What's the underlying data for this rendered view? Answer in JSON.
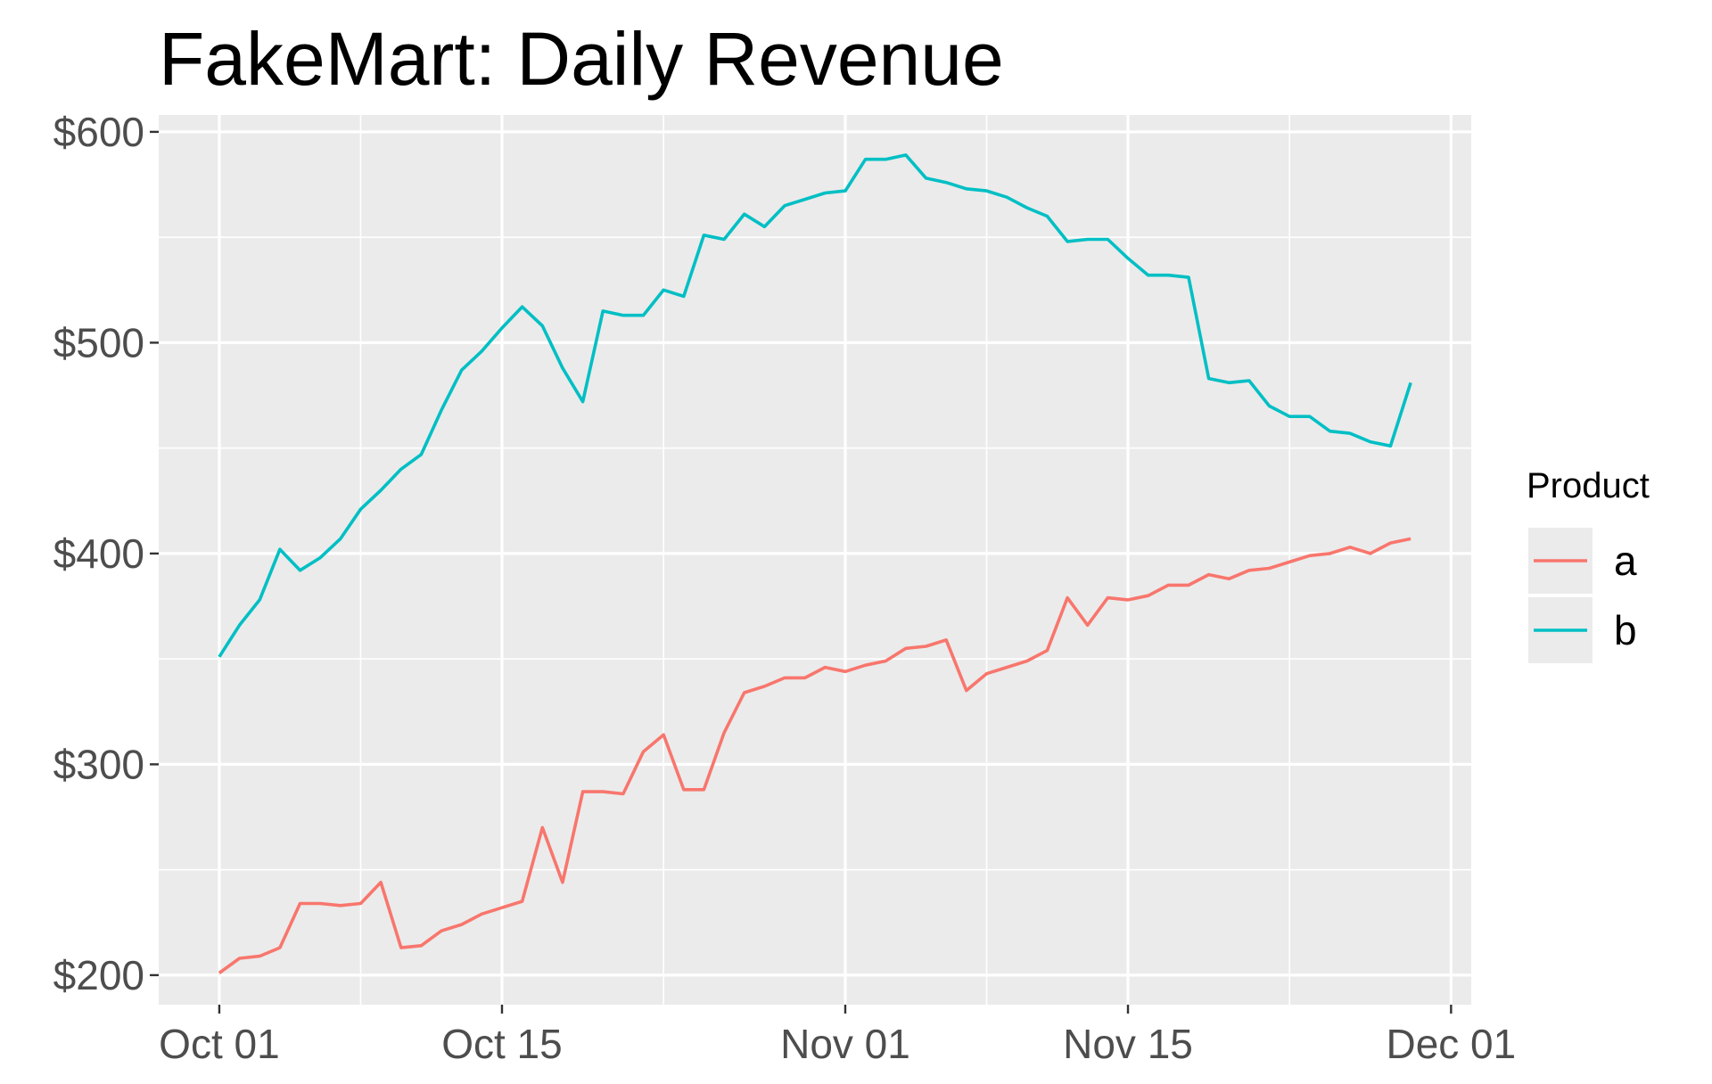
{
  "chart_data": {
    "type": "line",
    "title": "FakeMart: Daily Revenue",
    "xlabel": "",
    "ylabel": "",
    "x_type": "date",
    "xlim": [
      "2024-09-28",
      "2024-12-02"
    ],
    "ylim": [
      186,
      608
    ],
    "x_ticks": [
      {
        "date": "2024-10-01",
        "label": "Oct 01"
      },
      {
        "date": "2024-10-15",
        "label": "Oct 15"
      },
      {
        "date": "2024-11-01",
        "label": "Nov 01"
      },
      {
        "date": "2024-11-15",
        "label": "Nov 15"
      },
      {
        "date": "2024-12-01",
        "label": "Dec 01"
      }
    ],
    "x_minor_ticks": [
      "2024-10-08",
      "2024-10-23",
      "2024-11-08",
      "2024-11-23"
    ],
    "y_ticks": [
      {
        "value": 200,
        "label": "$200"
      },
      {
        "value": 300,
        "label": "$300"
      },
      {
        "value": 400,
        "label": "$400"
      },
      {
        "value": 500,
        "label": "$500"
      },
      {
        "value": 600,
        "label": "$600"
      }
    ],
    "y_minor_ticks": [
      250,
      350,
      450,
      550
    ],
    "grid": true,
    "legend": {
      "title": "Product",
      "position": "right"
    },
    "x_start": "2024-10-01",
    "x_step_days": 1,
    "series": [
      {
        "name": "a",
        "color": "#F8766D",
        "values": [
          201,
          208,
          209,
          213,
          234,
          234,
          233,
          234,
          244,
          213,
          214,
          221,
          224,
          229,
          232,
          235,
          270,
          244,
          287,
          287,
          286,
          306,
          314,
          288,
          288,
          315,
          334,
          337,
          341,
          341,
          346,
          344,
          347,
          349,
          355,
          356,
          359,
          335,
          343,
          346,
          349,
          354,
          379,
          366,
          379,
          378,
          380,
          385,
          385,
          390,
          388,
          392,
          393,
          396,
          399,
          400,
          403,
          400,
          405,
          407
        ]
      },
      {
        "name": "b",
        "color": "#00BFC4",
        "values": [
          351,
          366,
          378,
          402,
          392,
          398,
          407,
          421,
          430,
          440,
          447,
          468,
          487,
          496,
          507,
          517,
          508,
          488,
          472,
          515,
          513,
          513,
          525,
          522,
          551,
          549,
          561,
          555,
          565,
          568,
          571,
          572,
          587,
          587,
          589,
          578,
          576,
          573,
          572,
          569,
          564,
          560,
          548,
          549,
          549,
          540,
          532,
          532,
          531,
          483,
          481,
          482,
          470,
          465,
          465,
          458,
          457,
          453,
          451,
          481
        ]
      }
    ]
  }
}
